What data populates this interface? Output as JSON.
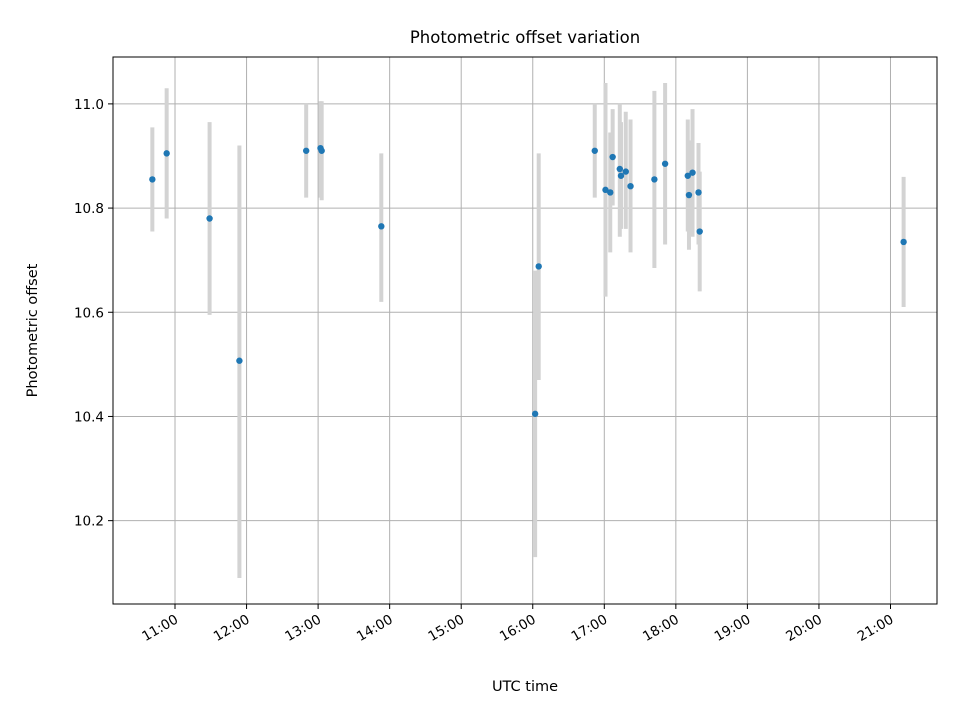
{
  "chart_data": {
    "type": "scatter",
    "title": "Photometric offset variation",
    "xlabel": "UTC time",
    "ylabel": "Photometric offset",
    "xlim": [
      "10:08",
      "21:39"
    ],
    "ylim": [
      10.04,
      11.09
    ],
    "x_ticks": [
      "11:00",
      "12:00",
      "13:00",
      "14:00",
      "15:00",
      "16:00",
      "17:00",
      "18:00",
      "19:00",
      "20:00",
      "21:00"
    ],
    "y_ticks": [
      "10.2",
      "10.4",
      "10.6",
      "10.8",
      "11.0"
    ],
    "grid": true,
    "legend": "none",
    "colors": {
      "point": "#1f77b4",
      "errorbar": "#d3d3d3",
      "grid": "#b0b0b0"
    },
    "points": [
      {
        "x": "10:41",
        "y": 10.855,
        "y_low": 10.755,
        "y_high": 10.955
      },
      {
        "x": "10:53",
        "y": 10.905,
        "y_low": 10.78,
        "y_high": 11.03
      },
      {
        "x": "11:29",
        "y": 10.78,
        "y_low": 10.595,
        "y_high": 10.965
      },
      {
        "x": "11:54",
        "y": 10.507,
        "y_low": 10.09,
        "y_high": 10.92
      },
      {
        "x": "12:50",
        "y": 10.91,
        "y_low": 10.82,
        "y_high": 11.0
      },
      {
        "x": "13:02",
        "y": 10.915,
        "y_low": 10.82,
        "y_high": 11.005
      },
      {
        "x": "13:03",
        "y": 10.91,
        "y_low": 10.815,
        "y_high": 11.005
      },
      {
        "x": "13:53",
        "y": 10.765,
        "y_low": 10.62,
        "y_high": 10.905
      },
      {
        "x": "16:02",
        "y": 10.405,
        "y_low": 10.13,
        "y_high": 10.68
      },
      {
        "x": "16:05",
        "y": 10.688,
        "y_low": 10.47,
        "y_high": 10.905
      },
      {
        "x": "16:52",
        "y": 10.91,
        "y_low": 10.82,
        "y_high": 11.0
      },
      {
        "x": "17:01",
        "y": 10.835,
        "y_low": 10.63,
        "y_high": 11.04
      },
      {
        "x": "17:05",
        "y": 10.83,
        "y_low": 10.715,
        "y_high": 10.945
      },
      {
        "x": "17:07",
        "y": 10.898,
        "y_low": 10.805,
        "y_high": 10.99
      },
      {
        "x": "17:13",
        "y": 10.875,
        "y_low": 10.745,
        "y_high": 11.0
      },
      {
        "x": "17:14",
        "y": 10.862,
        "y_low": 10.76,
        "y_high": 10.965
      },
      {
        "x": "17:18",
        "y": 10.87,
        "y_low": 10.76,
        "y_high": 10.985
      },
      {
        "x": "17:22",
        "y": 10.842,
        "y_low": 10.715,
        "y_high": 10.97
      },
      {
        "x": "17:42",
        "y": 10.855,
        "y_low": 10.685,
        "y_high": 11.025
      },
      {
        "x": "17:51",
        "y": 10.885,
        "y_low": 10.73,
        "y_high": 11.04
      },
      {
        "x": "18:10",
        "y": 10.862,
        "y_low": 10.755,
        "y_high": 10.97
      },
      {
        "x": "18:11",
        "y": 10.825,
        "y_low": 10.72,
        "y_high": 10.93
      },
      {
        "x": "18:14",
        "y": 10.868,
        "y_low": 10.745,
        "y_high": 10.99
      },
      {
        "x": "18:19",
        "y": 10.83,
        "y_low": 10.73,
        "y_high": 10.925
      },
      {
        "x": "18:20",
        "y": 10.755,
        "y_low": 10.64,
        "y_high": 10.87
      },
      {
        "x": "21:11",
        "y": 10.735,
        "y_low": 10.61,
        "y_high": 10.86
      }
    ]
  }
}
